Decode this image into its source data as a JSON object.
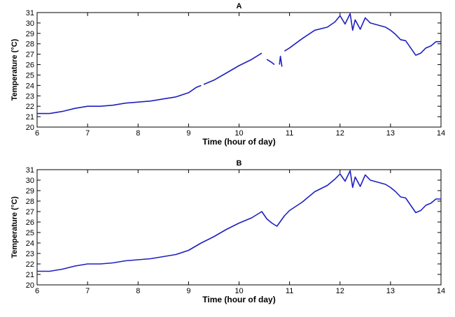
{
  "chart_data": [
    {
      "type": "line",
      "title": "A",
      "xlabel": "Time (hour of day)",
      "ylabel": "Temperature (°C)",
      "xlim": [
        6,
        14
      ],
      "ylim": [
        20,
        31
      ],
      "xticks": [
        6,
        7,
        8,
        9,
        10,
        11,
        12,
        13,
        14
      ],
      "yticks": [
        20,
        21,
        22,
        23,
        24,
        25,
        26,
        27,
        28,
        29,
        30,
        31
      ],
      "grid": false,
      "line_color": "#1f1fbf",
      "series": [
        {
          "segments": [
            {
              "x": [
                6.0,
                6.25,
                6.5,
                6.75,
                7.0,
                7.25,
                7.5,
                7.75,
                8.0,
                8.25,
                8.5,
                8.75,
                9.0,
                9.15,
                9.25
              ],
              "y": [
                21.3,
                21.3,
                21.5,
                21.8,
                22.0,
                22.0,
                22.1,
                22.3,
                22.4,
                22.5,
                22.7,
                22.9,
                23.3,
                23.8,
                24.0
              ]
            },
            {
              "x": [
                9.3,
                9.5,
                9.75,
                10.0,
                10.25,
                10.45
              ],
              "y": [
                24.1,
                24.5,
                25.2,
                25.9,
                26.5,
                27.1
              ]
            },
            {
              "x": [
                10.55,
                10.65,
                10.7
              ],
              "y": [
                26.5,
                26.2,
                26.0
              ]
            },
            {
              "x": [
                10.8,
                10.82,
                10.85
              ],
              "y": [
                26.0,
                26.8,
                25.8
              ]
            },
            {
              "x": [
                10.9,
                11.0,
                11.25,
                11.5,
                11.75,
                11.9,
                12.0,
                12.1,
                12.2,
                12.25,
                12.3,
                12.4,
                12.5,
                12.6,
                12.75,
                12.9,
                13.0,
                13.1,
                13.2,
                13.3,
                13.4,
                13.5,
                13.6,
                13.7,
                13.8,
                13.9,
                14.0
              ],
              "y": [
                27.3,
                27.6,
                28.5,
                29.3,
                29.6,
                30.1,
                30.7,
                29.9,
                30.9,
                29.3,
                30.3,
                29.4,
                30.5,
                30.0,
                29.8,
                29.6,
                29.3,
                28.9,
                28.4,
                28.3,
                27.6,
                26.9,
                27.1,
                27.6,
                27.8,
                28.2,
                28.2
              ]
            }
          ]
        }
      ]
    },
    {
      "type": "line",
      "title": "B",
      "xlabel": "Time (hour of day)",
      "ylabel": "Temperature (°C)",
      "xlim": [
        6,
        14
      ],
      "ylim": [
        20,
        31
      ],
      "xticks": [
        6,
        7,
        8,
        9,
        10,
        11,
        12,
        13,
        14
      ],
      "yticks": [
        20,
        21,
        22,
        23,
        24,
        25,
        26,
        27,
        28,
        29,
        30,
        31
      ],
      "grid": false,
      "line_color": "#1f1fbf",
      "series": [
        {
          "segments": [
            {
              "x": [
                6.0,
                6.25,
                6.5,
                6.75,
                7.0,
                7.25,
                7.5,
                7.75,
                8.0,
                8.25,
                8.5,
                8.75,
                9.0,
                9.25,
                9.5,
                9.75,
                10.0,
                10.25,
                10.45,
                10.55,
                10.65,
                10.75,
                10.9,
                11.0,
                11.25,
                11.5,
                11.75,
                11.9,
                12.0,
                12.1,
                12.2,
                12.25,
                12.3,
                12.4,
                12.5,
                12.6,
                12.75,
                12.9,
                13.0,
                13.1,
                13.2,
                13.3,
                13.4,
                13.5,
                13.6,
                13.7,
                13.8,
                13.9,
                14.0
              ],
              "y": [
                21.3,
                21.3,
                21.5,
                21.8,
                22.0,
                22.0,
                22.1,
                22.3,
                22.4,
                22.5,
                22.7,
                22.9,
                23.3,
                24.0,
                24.6,
                25.3,
                25.9,
                26.4,
                27.0,
                26.3,
                25.9,
                25.6,
                26.6,
                27.1,
                27.9,
                28.9,
                29.5,
                30.1,
                30.6,
                29.9,
                30.9,
                29.3,
                30.3,
                29.4,
                30.5,
                30.0,
                29.8,
                29.6,
                29.3,
                28.9,
                28.4,
                28.3,
                27.6,
                26.9,
                27.1,
                27.6,
                27.8,
                28.2,
                28.2
              ]
            }
          ]
        }
      ]
    }
  ]
}
